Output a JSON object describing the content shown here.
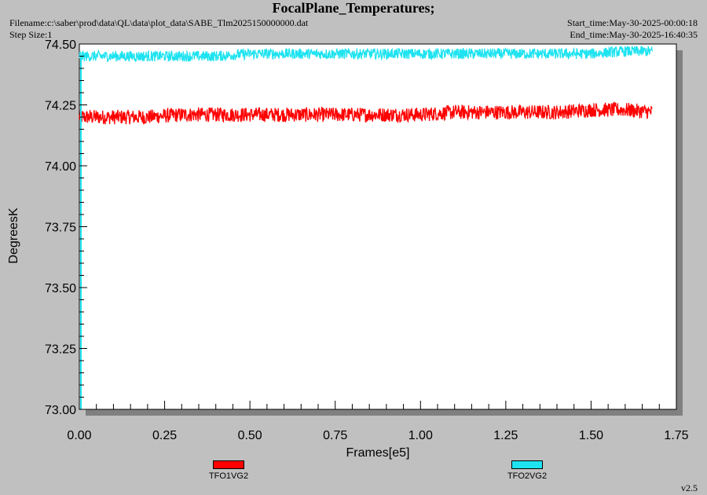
{
  "header": {
    "title": "FocalPlane_Temperatures;",
    "filename": "Filename:c:\\saber\\prod\\data\\QL\\data\\plot_data\\SABE_Tlm2025150000000.dat",
    "step_size": "Step Size:1",
    "start_time": "Start_time:May-30-2025-00:00:18",
    "end_time": "End_time:May-30-2025-16:40:35"
  },
  "footer": {
    "version": "v2.5"
  },
  "colors": {
    "background": "#c0c0c0",
    "plot_area": "#ffffff",
    "series1": "#ff0000",
    "series2": "#1ee3f0"
  },
  "chart_data": {
    "type": "line",
    "title": "FocalPlane_Temperatures;",
    "xlabel": "Frames[e5]",
    "ylabel": "DegreesK",
    "xlim": [
      0,
      1.75
    ],
    "ylim": [
      73.0,
      74.5
    ],
    "x_ticks": [
      "0.00",
      "0.25",
      "0.50",
      "0.75",
      "1.00",
      "1.25",
      "1.50",
      "1.75"
    ],
    "y_ticks": [
      "74.50",
      "74.25",
      "74.00",
      "73.75",
      "73.50",
      "73.25",
      "73.00"
    ],
    "grid": false,
    "legend_position": "bottom",
    "series": [
      {
        "name": "TFO1VG2",
        "color": "#ff0000",
        "x": [
          0.0,
          0.1,
          0.2,
          0.3,
          0.4,
          0.5,
          0.6,
          0.7,
          0.8,
          0.9,
          1.0,
          1.1,
          1.2,
          1.3,
          1.4,
          1.5,
          1.6,
          1.68
        ],
        "y": [
          74.2,
          74.2,
          74.2,
          74.21,
          74.21,
          74.21,
          74.21,
          74.21,
          74.21,
          74.21,
          74.21,
          74.22,
          74.22,
          74.22,
          74.22,
          74.23,
          74.23,
          74.22
        ],
        "spread": 0.03
      },
      {
        "name": "TFO2VG2",
        "color": "#1ee3f0",
        "x": [
          0.0,
          0.1,
          0.2,
          0.3,
          0.4,
          0.5,
          0.6,
          0.7,
          0.8,
          0.9,
          1.0,
          1.1,
          1.2,
          1.3,
          1.4,
          1.5,
          1.6,
          1.68
        ],
        "y": [
          74.45,
          74.45,
          74.45,
          74.45,
          74.45,
          74.46,
          74.46,
          74.46,
          74.46,
          74.46,
          74.46,
          74.46,
          74.46,
          74.46,
          74.46,
          74.46,
          74.47,
          74.47
        ],
        "spread": 0.022
      }
    ]
  }
}
